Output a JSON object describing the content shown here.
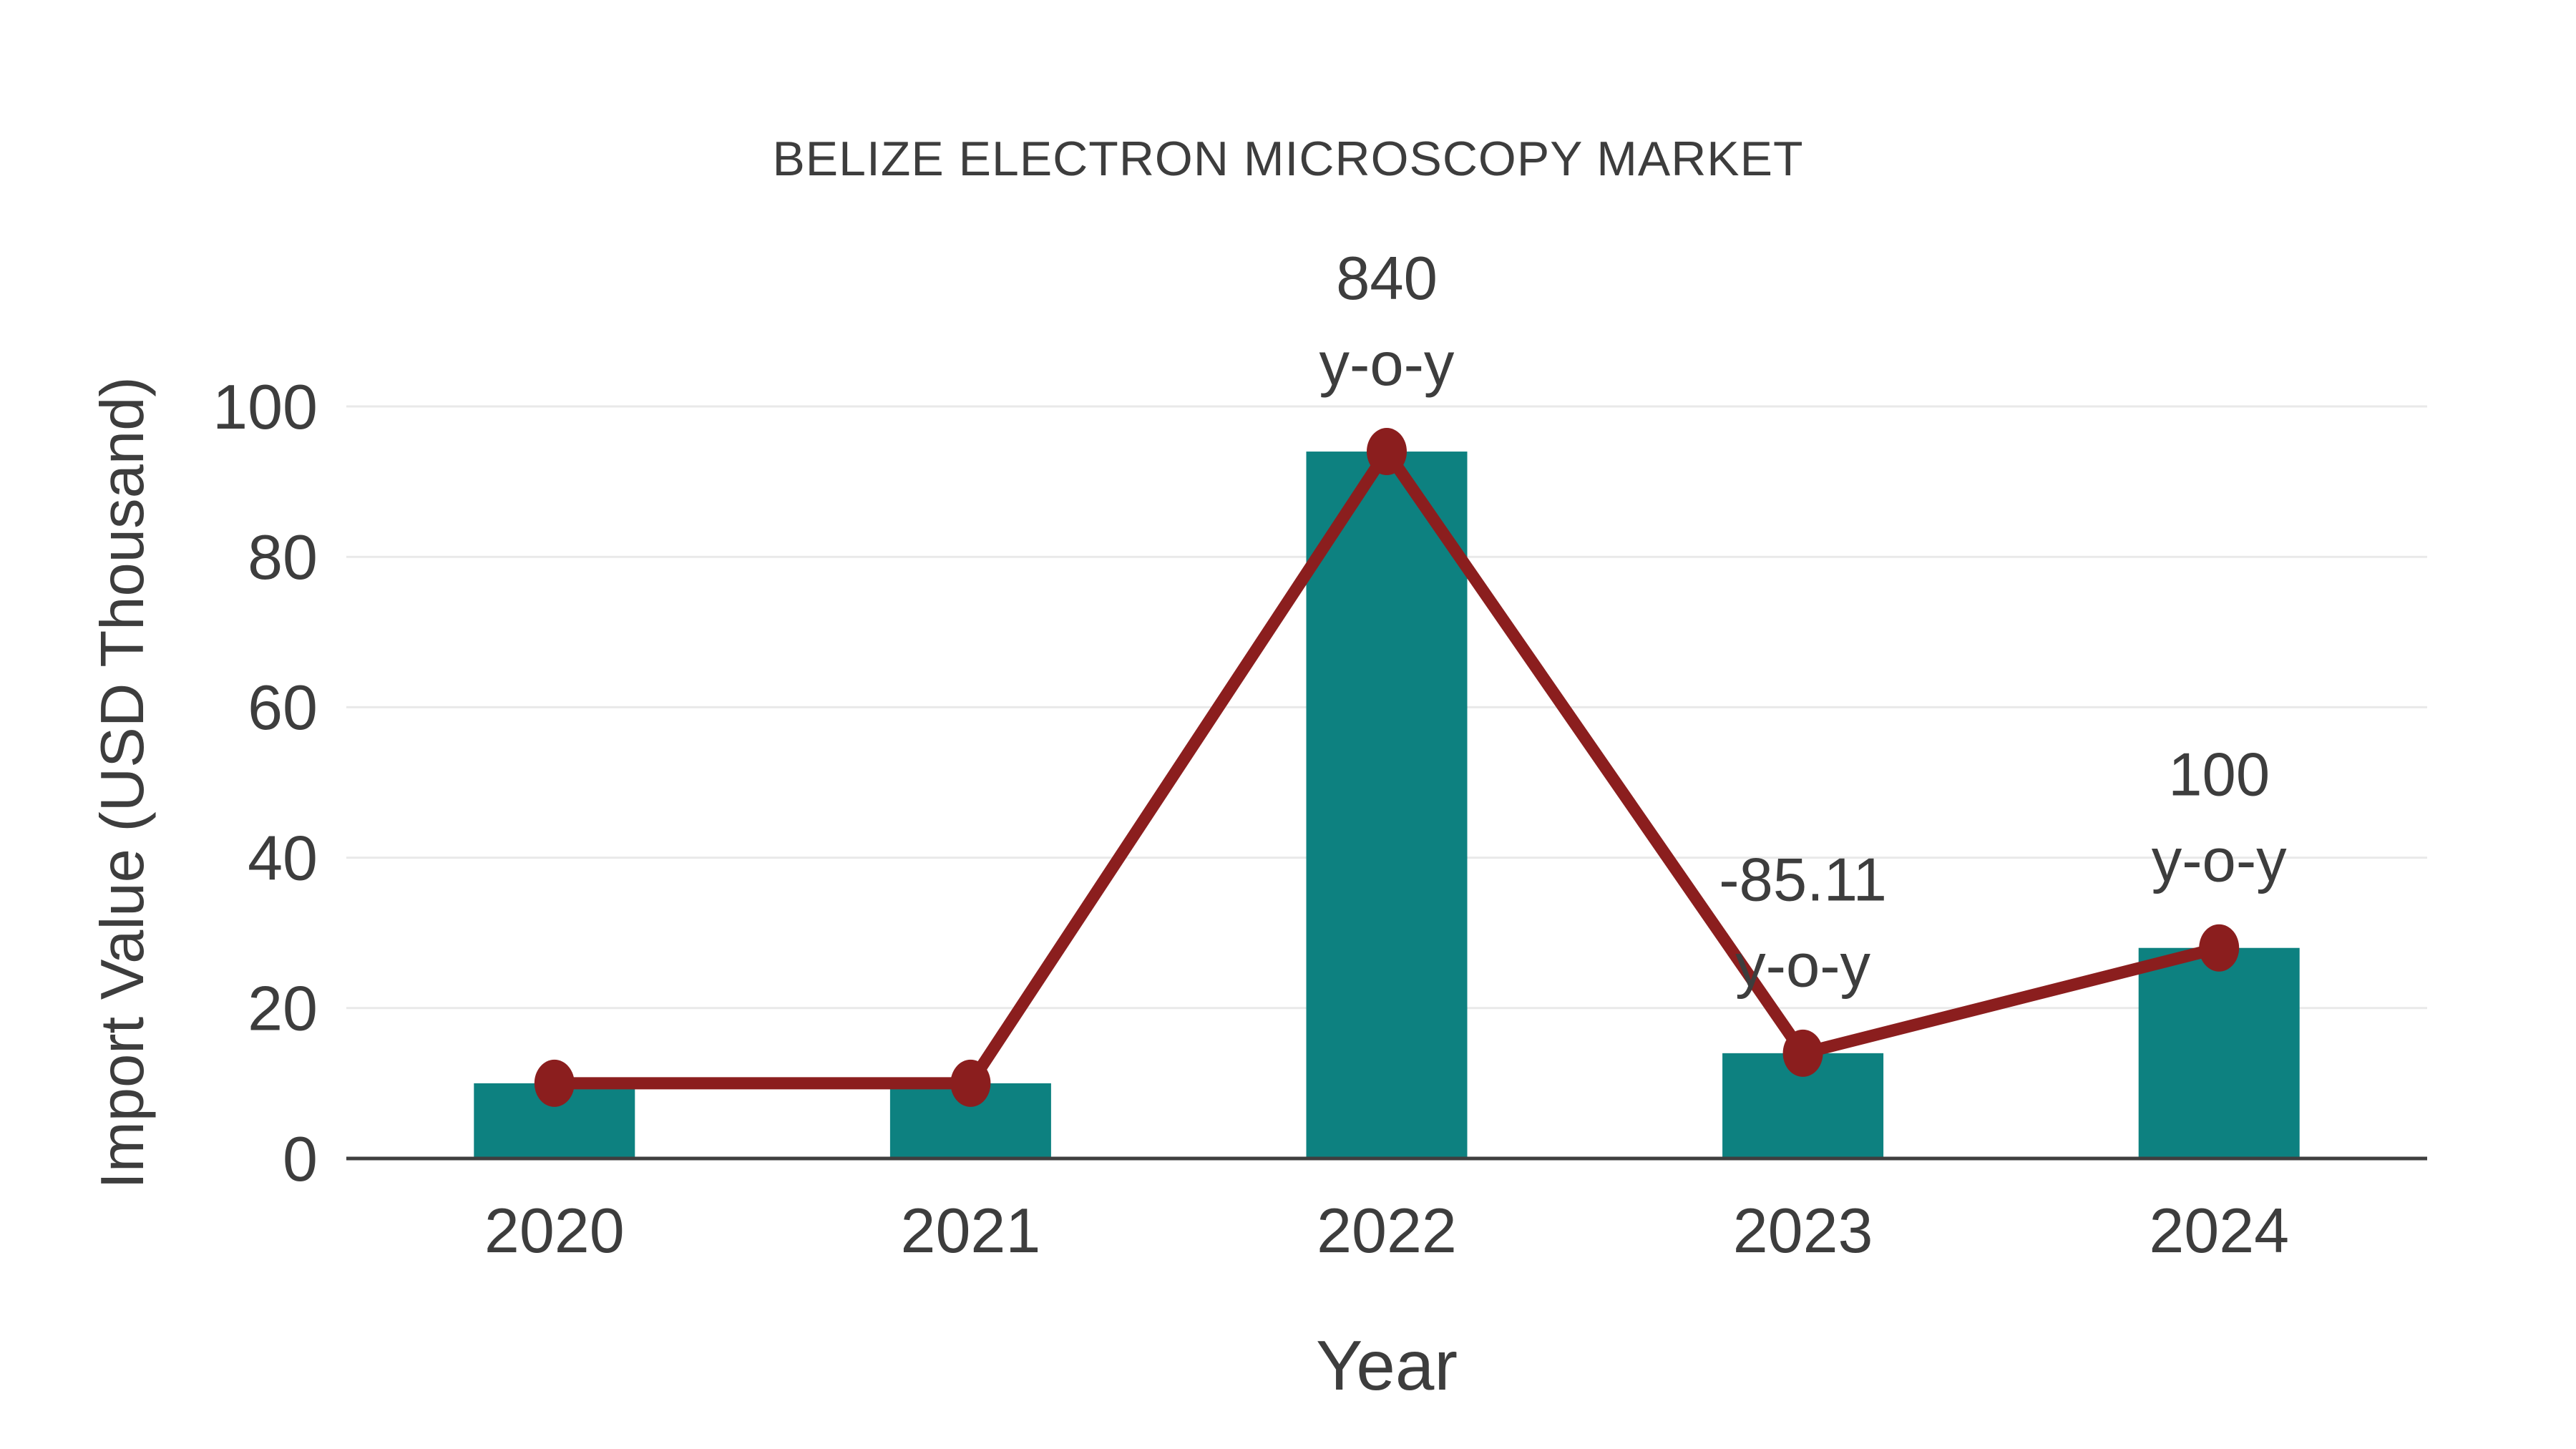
{
  "chart_data": {
    "type": "bar",
    "title": "BELIZE ELECTRON MICROSCOPY MARKET",
    "xlabel": "Year",
    "ylabel": "Import Value (USD Thousand)",
    "categories": [
      "2020",
      "2021",
      "2022",
      "2023",
      "2024"
    ],
    "series": [
      {
        "name": "import-value-bars",
        "render": "bar",
        "values": [
          10,
          10,
          94,
          14,
          28
        ]
      },
      {
        "name": "import-value-trend",
        "render": "line",
        "values": [
          10,
          10,
          94,
          14,
          28
        ]
      }
    ],
    "annotations": [
      {
        "category": "2022",
        "lines": [
          "840",
          "y-o-y"
        ]
      },
      {
        "category": "2023",
        "lines": [
          "-85.11",
          "y-o-y"
        ]
      },
      {
        "category": "2024",
        "lines": [
          "100",
          "y-o-y"
        ]
      }
    ],
    "ylim": [
      0,
      100
    ],
    "yticks": [
      0,
      20,
      40,
      60,
      80,
      100
    ],
    "grid": true,
    "legend": "none",
    "colors": {
      "bar": "#0d8180",
      "line": "#8b1e1e",
      "marker": "#8b1e1e",
      "text": "#3d3d3d",
      "grid": "#e9e9e9",
      "axis": "#3f3f3f",
      "background": "#ffffff"
    }
  }
}
